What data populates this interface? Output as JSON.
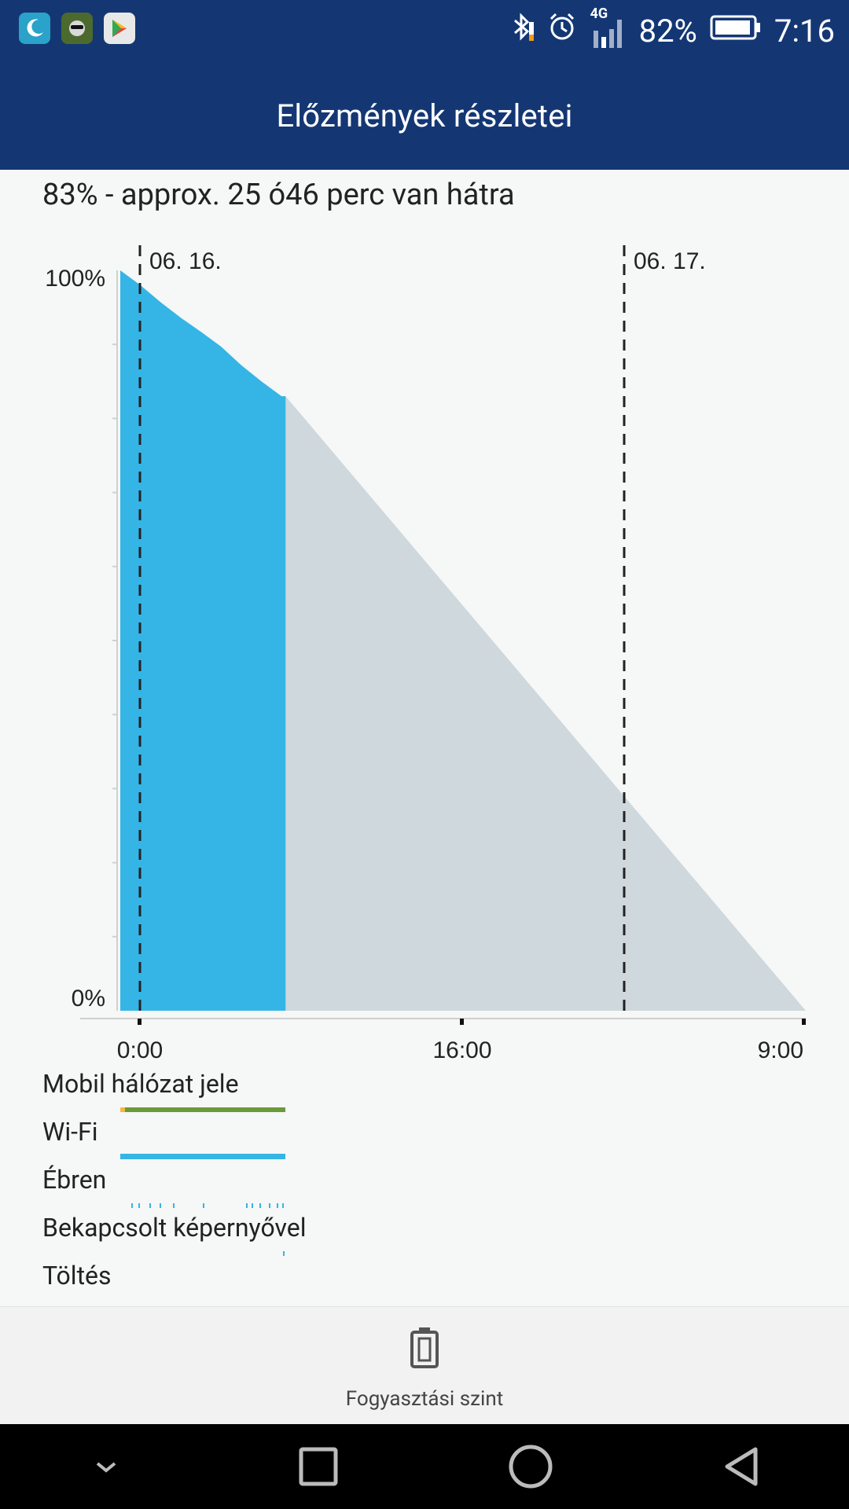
{
  "status_bar": {
    "battery_percent": "82%",
    "time": "7:16",
    "network_type": "4G",
    "icons": [
      "moon-app-icon",
      "game-app-icon",
      "play-store-icon",
      "bluetooth-icon",
      "alarm-icon",
      "signal-icon",
      "battery-icon"
    ]
  },
  "header": {
    "title": "Előzmények részletei"
  },
  "summary": {
    "text": "83% - approx. 25 ó46 perc van hátra"
  },
  "chart_data": {
    "type": "area",
    "title": "",
    "xlabel": "",
    "ylabel": "",
    "ylim": [
      0,
      100
    ],
    "y_ticks": [
      "100%",
      "0%"
    ],
    "x_ticks": [
      "0:00",
      "16:00",
      "9:00"
    ],
    "date_markers": [
      "06. 16.",
      "06. 17."
    ],
    "series": [
      {
        "name": "",
        "kind": "measured",
        "color": "#35b5e5",
        "x": [
          0,
          1,
          2,
          3,
          4,
          5,
          6,
          7,
          8,
          8.2
        ],
        "values": [
          100,
          98,
          95.7,
          93.6,
          91.7,
          89.7,
          87.2,
          85,
          83,
          83
        ]
      },
      {
        "name": "",
        "kind": "predicted",
        "color": "#cfd8dc",
        "x": [
          8.2,
          34
        ],
        "values": [
          83,
          0
        ]
      }
    ]
  },
  "legend": {
    "rows": [
      {
        "label": "Mobil hálózat jele"
      },
      {
        "label": "Wi-Fi"
      },
      {
        "label": "Ébren"
      },
      {
        "label": "Bekapcsolt képernyővel"
      },
      {
        "label": "Töltés"
      }
    ],
    "colors": {
      "mobile_signal": "#6a9a3a",
      "mobile_signal_start": "#f4b942",
      "wifi": "#35b5e5",
      "awake": "#35b5e5"
    }
  },
  "bottom": {
    "label": "Fogyasztási szint"
  },
  "colors": {
    "header_bg": "#143774",
    "measured": "#35b5e5",
    "predicted": "#cfd8dc"
  }
}
